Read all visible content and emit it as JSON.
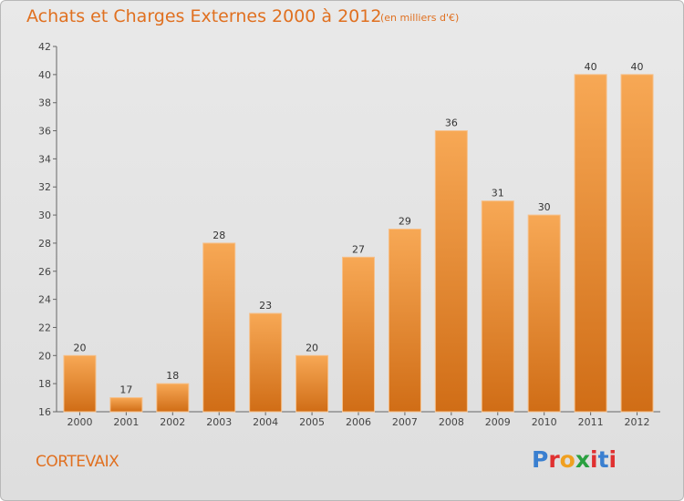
{
  "title": "Achats et Charges Externes 2000 à 2012",
  "subtitle": "(en milliers d'€)",
  "commune": "CORTEVAIX",
  "brand": {
    "text": "Proxiti",
    "letter_colors": [
      "#3a7fd0",
      "#e03030",
      "#f0a020",
      "#2aa040",
      "#e03030",
      "#3a7fd0",
      "#e03030"
    ]
  },
  "colors": {
    "bar_light": "#f7a855",
    "bar_dark": "#d06d16",
    "accent": "#e07020"
  },
  "chart_data": {
    "type": "bar",
    "categories": [
      "2000",
      "2001",
      "2002",
      "2003",
      "2004",
      "2005",
      "2006",
      "2007",
      "2008",
      "2009",
      "2010",
      "2011",
      "2012"
    ],
    "values": [
      20,
      17,
      18,
      28,
      23,
      20,
      27,
      29,
      36,
      31,
      30,
      40,
      40
    ],
    "ylim": [
      16,
      42
    ],
    "yticks": [
      16,
      18,
      20,
      22,
      24,
      26,
      28,
      30,
      32,
      34,
      36,
      38,
      40,
      42
    ],
    "grid": false
  }
}
